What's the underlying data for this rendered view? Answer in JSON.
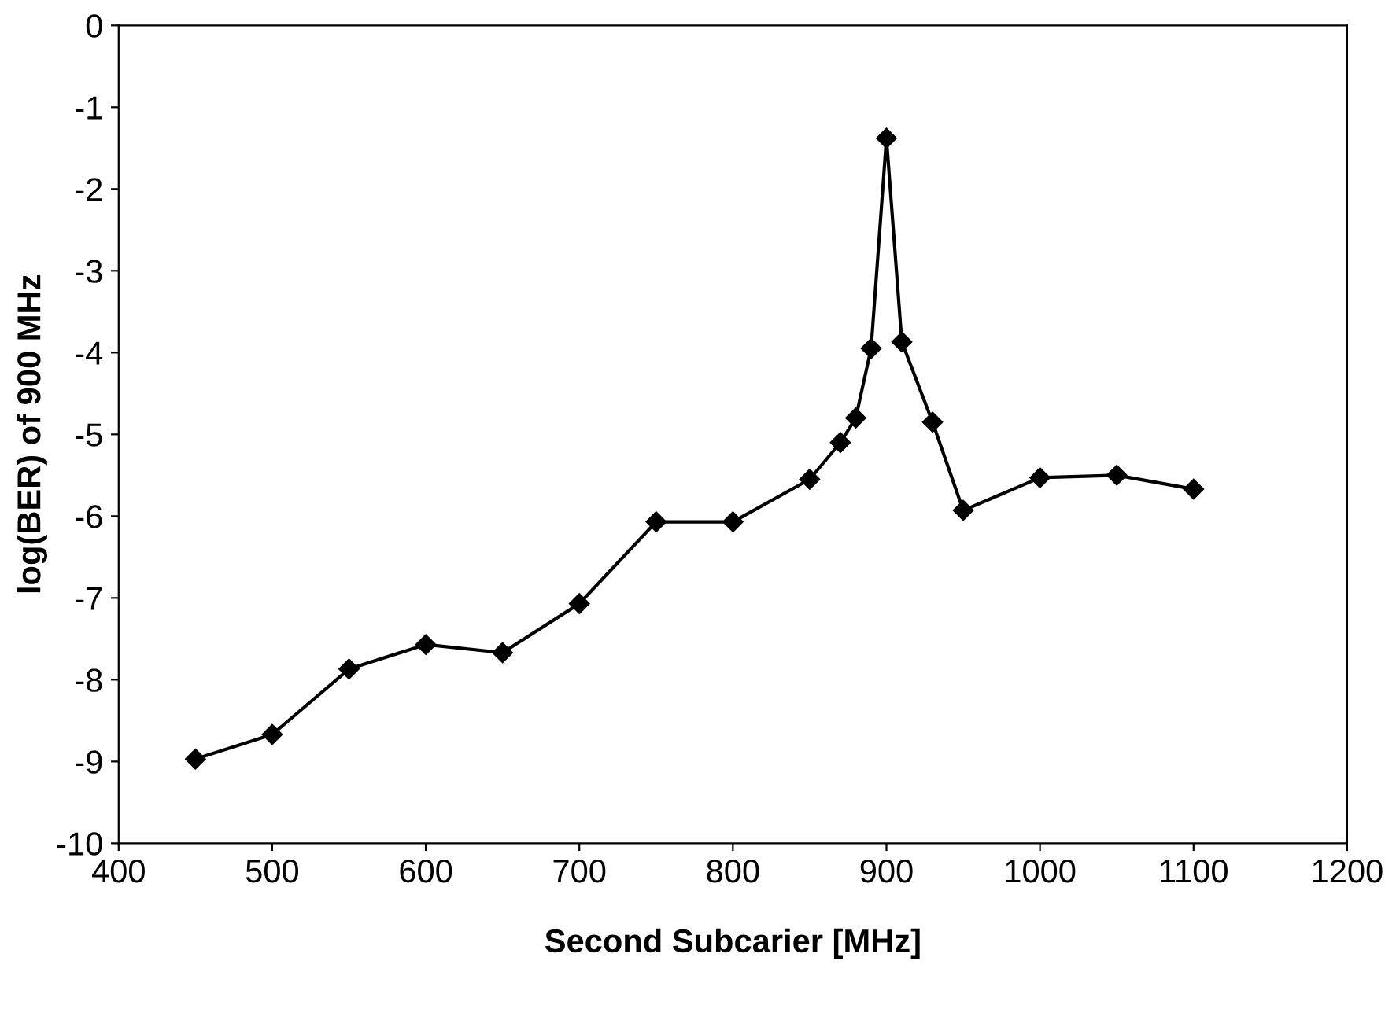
{
  "chart_data": {
    "type": "line",
    "xlabel": "Second Subcarier [MHz]",
    "ylabel": "log(BER) of 900 MHz",
    "x": [
      450,
      500,
      550,
      600,
      650,
      700,
      750,
      800,
      850,
      870,
      880,
      890,
      900,
      910,
      930,
      950,
      1000,
      1050,
      1100
    ],
    "series": [
      {
        "color": "#000000",
        "values": [
          -8.97,
          -8.67,
          -7.87,
          -7.57,
          -7.67,
          -7.07,
          -6.07,
          -6.07,
          -5.55,
          -5.1,
          -4.8,
          -3.95,
          -1.38,
          -3.87,
          -4.85,
          -5.93,
          -5.53,
          -5.5,
          -5.67
        ]
      }
    ],
    "xlim": [
      400,
      1200
    ],
    "xticks": [
      400,
      500,
      600,
      700,
      800,
      900,
      1000,
      1100,
      1200
    ],
    "ylim": [
      -10,
      0
    ],
    "yticks": [
      -10,
      -9,
      -8,
      -7,
      -6,
      -5,
      -4,
      -3,
      -2,
      -1,
      0
    ],
    "marker": "diamond",
    "line_style": "solid",
    "grid": false,
    "legend": false
  }
}
